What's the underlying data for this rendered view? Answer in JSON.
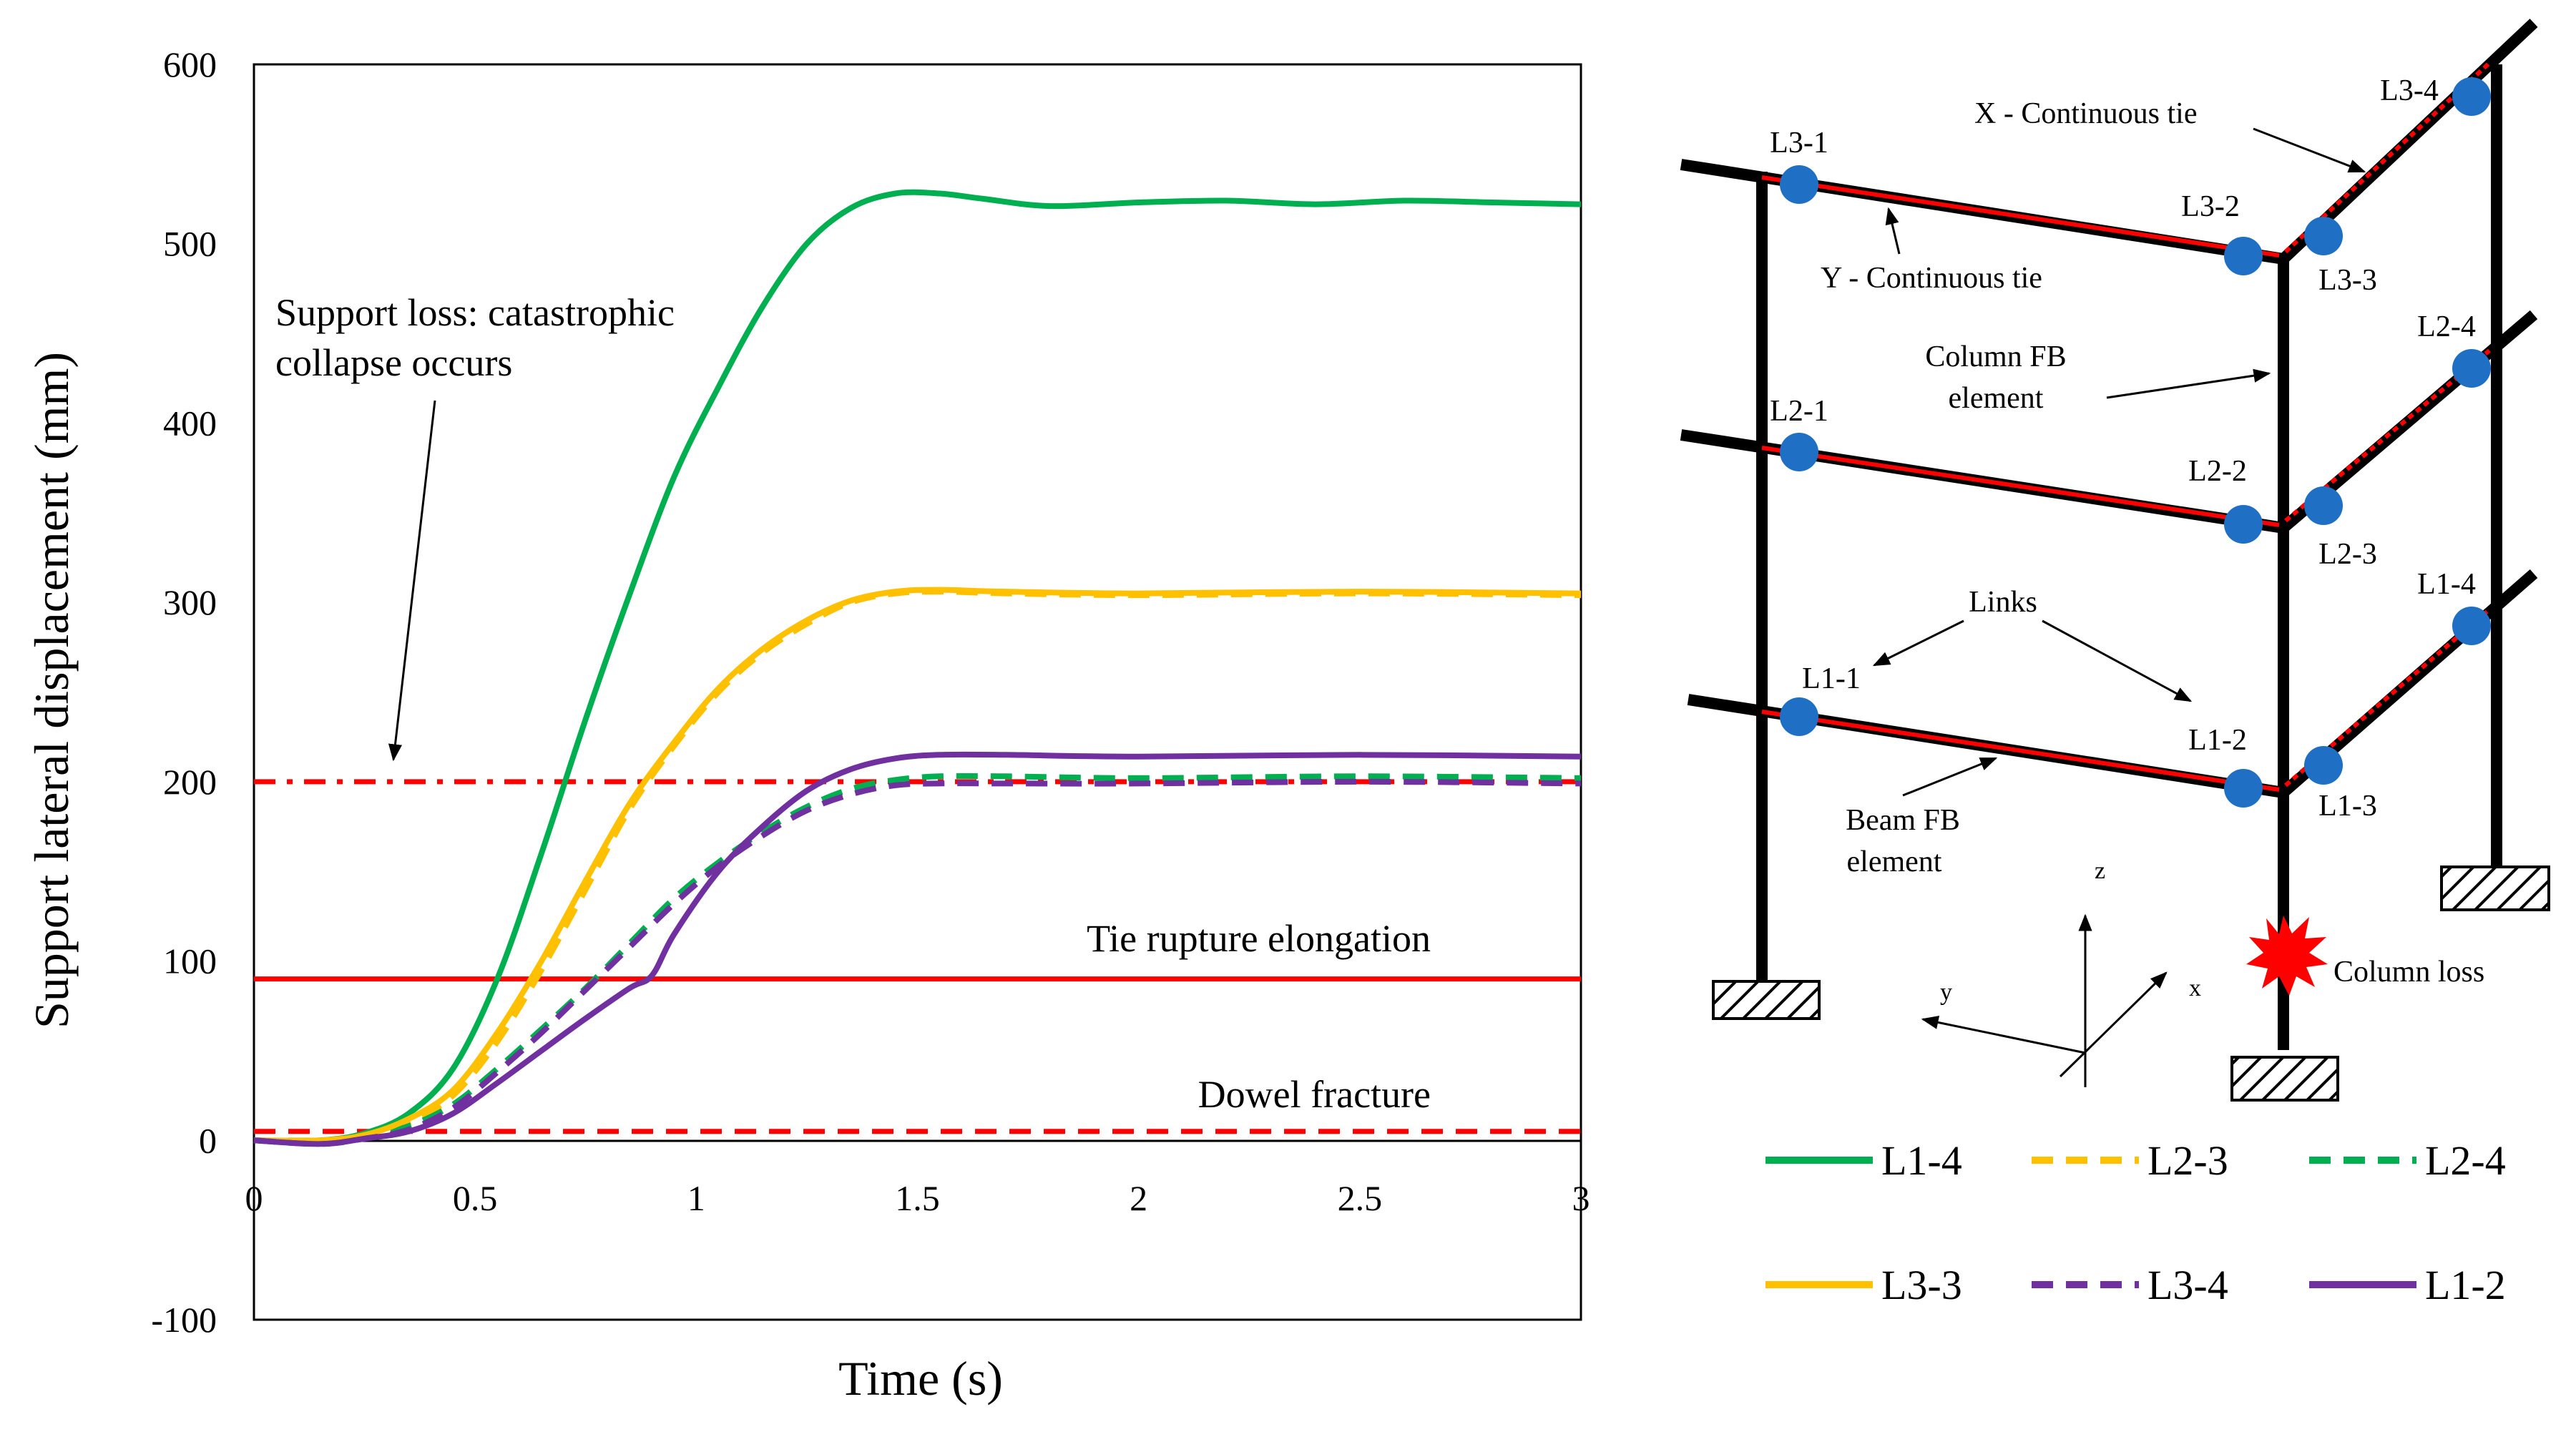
{
  "chart_data": {
    "type": "line",
    "xlabel": "Time (s)",
    "ylabel": "Support lateral displacement (mm)",
    "xlim": [
      0,
      3
    ],
    "ylim": [
      -100,
      600
    ],
    "xticks": [
      "0",
      "0.5",
      "1",
      "1.5",
      "2",
      "2.5",
      "3"
    ],
    "yticks": [
      "-100",
      "0",
      "100",
      "200",
      "300",
      "400",
      "500",
      "600"
    ],
    "series": [
      {
        "name": "L1-4",
        "color": "#00b050",
        "dash": "solid",
        "x": [
          0,
          0.15,
          0.25,
          0.35,
          0.45,
          0.55,
          0.65,
          0.75,
          0.85,
          0.95,
          1.05,
          1.15,
          1.25,
          1.35,
          1.45,
          1.55,
          1.65,
          1.8,
          2.0,
          2.2,
          2.4,
          2.6,
          2.8,
          3.0
        ],
        "y": [
          0,
          0,
          4,
          15,
          40,
          90,
          160,
          235,
          305,
          370,
          420,
          465,
          500,
          520,
          528,
          528,
          525,
          521,
          523,
          524,
          522,
          524,
          523,
          522
        ]
      },
      {
        "name": "L2-3",
        "color": "#ffc000",
        "dash": "dashed",
        "x": [
          0,
          0.15,
          0.25,
          0.35,
          0.45,
          0.55,
          0.65,
          0.75,
          0.85,
          0.95,
          1.05,
          1.15,
          1.25,
          1.35,
          1.45,
          1.55,
          1.7,
          2.0,
          2.5,
          3.0
        ],
        "y": [
          0,
          0,
          3,
          10,
          25,
          55,
          95,
          140,
          185,
          220,
          250,
          272,
          288,
          300,
          305,
          306,
          305,
          304,
          305,
          304
        ]
      },
      {
        "name": "L2-4",
        "color": "#00b050",
        "dash": "dashed",
        "x": [
          0,
          0.15,
          0.25,
          0.35,
          0.45,
          0.55,
          0.65,
          0.75,
          0.85,
          0.95,
          1.05,
          1.15,
          1.25,
          1.35,
          1.45,
          1.55,
          1.7,
          2.0,
          2.5,
          3.0
        ],
        "y": [
          0,
          0,
          2,
          8,
          20,
          40,
          62,
          85,
          110,
          135,
          155,
          172,
          186,
          196,
          201,
          203,
          203,
          202,
          203,
          202
        ]
      },
      {
        "name": "L3-3",
        "color": "#ffc000",
        "dash": "solid",
        "x": [
          0,
          0.15,
          0.25,
          0.35,
          0.45,
          0.55,
          0.65,
          0.75,
          0.85,
          0.95,
          1.05,
          1.15,
          1.25,
          1.35,
          1.45,
          1.55,
          1.7,
          2.0,
          2.5,
          3.0
        ],
        "y": [
          0,
          0,
          3,
          12,
          28,
          60,
          100,
          145,
          188,
          222,
          252,
          274,
          290,
          301,
          306,
          307,
          306,
          305,
          306,
          305
        ]
      },
      {
        "name": "L3-4",
        "color": "#7030a0",
        "dash": "dashed",
        "x": [
          0,
          0.15,
          0.25,
          0.35,
          0.45,
          0.55,
          0.65,
          0.75,
          0.85,
          0.95,
          1.05,
          1.15,
          1.25,
          1.35,
          1.45,
          1.55,
          1.7,
          2.0,
          2.5,
          3.0
        ],
        "y": [
          0,
          -2,
          1,
          6,
          18,
          38,
          60,
          84,
          108,
          132,
          153,
          170,
          184,
          193,
          198,
          199,
          199,
          199,
          200,
          199
        ]
      },
      {
        "name": "L1-2",
        "color": "#7030a0",
        "dash": "solid",
        "x": [
          0,
          0.15,
          0.25,
          0.35,
          0.45,
          0.55,
          0.65,
          0.75,
          0.85,
          0.9,
          0.95,
          1.05,
          1.15,
          1.25,
          1.35,
          1.45,
          1.55,
          1.7,
          2.0,
          2.5,
          3.0
        ],
        "y": [
          0,
          -2,
          1,
          5,
          15,
          32,
          50,
          68,
          85,
          92,
          115,
          150,
          175,
          195,
          207,
          213,
          215,
          215,
          214,
          215,
          214
        ]
      }
    ],
    "reference_lines": [
      {
        "name": "Support loss",
        "y": 200,
        "style": "dashdot",
        "color": "#ff0000"
      },
      {
        "name": "Tie rupture elongation",
        "y": 90,
        "style": "solid",
        "color": "#ff0000"
      },
      {
        "name": "Dowel fracture",
        "y": 5,
        "style": "dashed",
        "color": "#ff0000"
      }
    ],
    "annotations": {
      "support_loss_line1": "Support loss: catastrophic",
      "support_loss_line2": "collapse occurs",
      "tie_rupture": "Tie rupture elongation",
      "dowel_fracture": "Dowel fracture"
    }
  },
  "diagram": {
    "nodes": [
      "L3-1",
      "L3-2",
      "L3-3",
      "L3-4",
      "L2-1",
      "L2-2",
      "L2-3",
      "L2-4",
      "L1-1",
      "L1-2",
      "L1-3",
      "L1-4"
    ],
    "labels": {
      "x_tie": "X - Continuous tie",
      "y_tie": "Y - Continuous tie",
      "column_fb_1": "Column FB",
      "column_fb_2": "element",
      "links": "Links",
      "beam_fb_1": "Beam FB",
      "beam_fb_2": "element",
      "column_loss": "Column loss",
      "axis_x": "x",
      "axis_y": "y",
      "axis_z": "z"
    },
    "colors": {
      "node": "#1f6fc5",
      "tie": "#ff0000",
      "frame": "#000000"
    }
  },
  "legend": [
    "L1-4",
    "L2-3",
    "L2-4",
    "L3-3",
    "L3-4",
    "L1-2"
  ]
}
